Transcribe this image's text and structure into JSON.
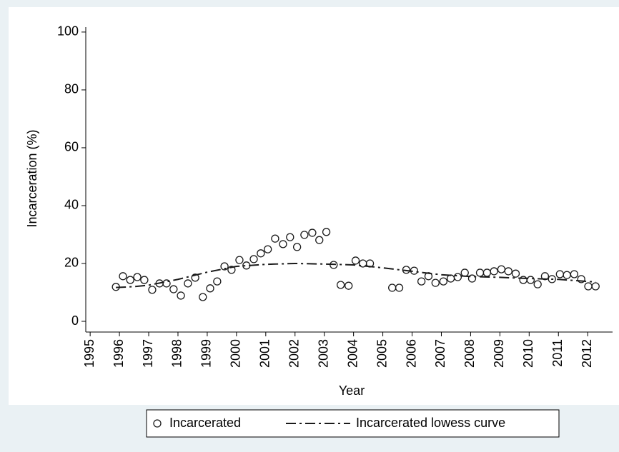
{
  "chart_data": {
    "type": "scatter",
    "x_label": "Year",
    "y_label": "Incarceration (%)",
    "xlim": [
      1994.85,
      2012.85
    ],
    "ylim": [
      -3.7,
      101.7
    ],
    "xticks": [
      1995,
      1996,
      1997,
      1998,
      1999,
      2000,
      2001,
      2002,
      2003,
      2004,
      2005,
      2006,
      2007,
      2008,
      2009,
      2010,
      2011,
      2012
    ],
    "yticks": [
      0,
      20,
      40,
      60,
      80,
      100
    ],
    "series": [
      {
        "name": "Incarcerated",
        "type": "scatter",
        "color": "#1a1a1a",
        "x": [
          1995.88,
          1996.12,
          1996.37,
          1996.61,
          1996.85,
          1997.12,
          1997.37,
          1997.61,
          1997.85,
          1998.1,
          1998.34,
          1998.59,
          1998.85,
          1999.1,
          1999.34,
          1999.59,
          1999.83,
          2000.1,
          2000.34,
          2000.59,
          2000.83,
          2001.07,
          2001.32,
          2001.59,
          2001.83,
          2002.07,
          2002.32,
          2002.59,
          2002.83,
          2003.07,
          2003.32,
          2003.56,
          2003.83,
          2004.07,
          2004.32,
          2004.56,
          2005.32,
          2005.56,
          2005.8,
          2006.07,
          2006.32,
          2006.56,
          2006.8,
          2007.07,
          2007.32,
          2007.56,
          2007.8,
          2008.05,
          2008.32,
          2008.56,
          2008.8,
          2009.05,
          2009.29,
          2009.54,
          2009.8,
          2010.05,
          2010.29,
          2010.54,
          2010.78,
          2011.05,
          2011.29,
          2011.54,
          2011.78,
          2012.02,
          2012.27
        ],
        "values": [
          11.9,
          15.6,
          14.3,
          15.3,
          14.3,
          10.9,
          13.1,
          13.1,
          11.1,
          8.9,
          13.1,
          15.1,
          8.4,
          11.4,
          13.8,
          19.0,
          17.8,
          21.2,
          19.3,
          21.5,
          23.5,
          24.9,
          28.6,
          26.7,
          29.1,
          25.7,
          29.9,
          30.6,
          28.1,
          30.9,
          19.5,
          12.6,
          12.3,
          21.0,
          20.0,
          20.0,
          11.6,
          11.6,
          17.8,
          17.5,
          13.8,
          15.6,
          13.3,
          13.8,
          14.8,
          15.3,
          16.8,
          14.8,
          16.8,
          16.8,
          17.3,
          18.0,
          17.3,
          16.5,
          14.3,
          14.3,
          12.8,
          15.6,
          14.6,
          16.3,
          16.0,
          16.3,
          14.6,
          12.1,
          12.1
        ]
      },
      {
        "name": "Incarcerated lowess curve",
        "type": "line",
        "color": "#1a1a1a",
        "dash": "14 5 3 5",
        "x": [
          1995.88,
          1996.5,
          1997,
          1998,
          1999,
          2000,
          2001,
          2002,
          2003,
          2004,
          2005,
          2006,
          2007,
          2008,
          2009,
          2010,
          2011,
          2012.27
        ],
        "values": [
          11.7,
          12.0,
          12.5,
          14.5,
          17.0,
          19.0,
          19.7,
          20.0,
          19.8,
          19.5,
          18.5,
          17.3,
          16.1,
          15.5,
          15.2,
          14.8,
          14.5,
          13.6
        ]
      }
    ]
  }
}
